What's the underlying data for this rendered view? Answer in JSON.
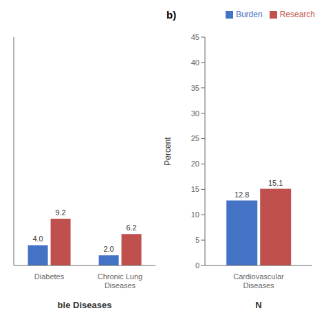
{
  "chart_data": [
    {
      "type": "bar",
      "categories": [
        "Diabetes",
        "Chronic Lung\nDiseases"
      ],
      "series": [
        {
          "name": "Burden",
          "color": "#4472C4",
          "values": [
            4.0,
            2.0
          ],
          "value_labels": [
            "4.0",
            "2.0"
          ]
        },
        {
          "name": "Research",
          "color": "#C0504D",
          "values": [
            9.2,
            6.2
          ]
        }
      ],
      "x_label": "ble Diseases",
      "ylim": [
        0,
        45
      ],
      "tick_labels": "x",
      "data_labels": true
    },
    {
      "type": "bar",
      "categories": [
        "Cardiovascular\nDiseases"
      ],
      "series": [
        {
          "name": "Burden",
          "color": "#4472C4",
          "values": [
            12.8
          ]
        },
        {
          "name": "Research",
          "color": "#C0504D",
          "values": [
            15.1
          ]
        }
      ],
      "x_label": "N",
      "y_label": "Percent",
      "ylim": [
        0,
        45
      ],
      "yticks": [
        0,
        5,
        10,
        15,
        20,
        25,
        30,
        35,
        40,
        45
      ],
      "data_labels": true,
      "legend": "upper right",
      "annotations": [
        "b)"
      ]
    }
  ]
}
